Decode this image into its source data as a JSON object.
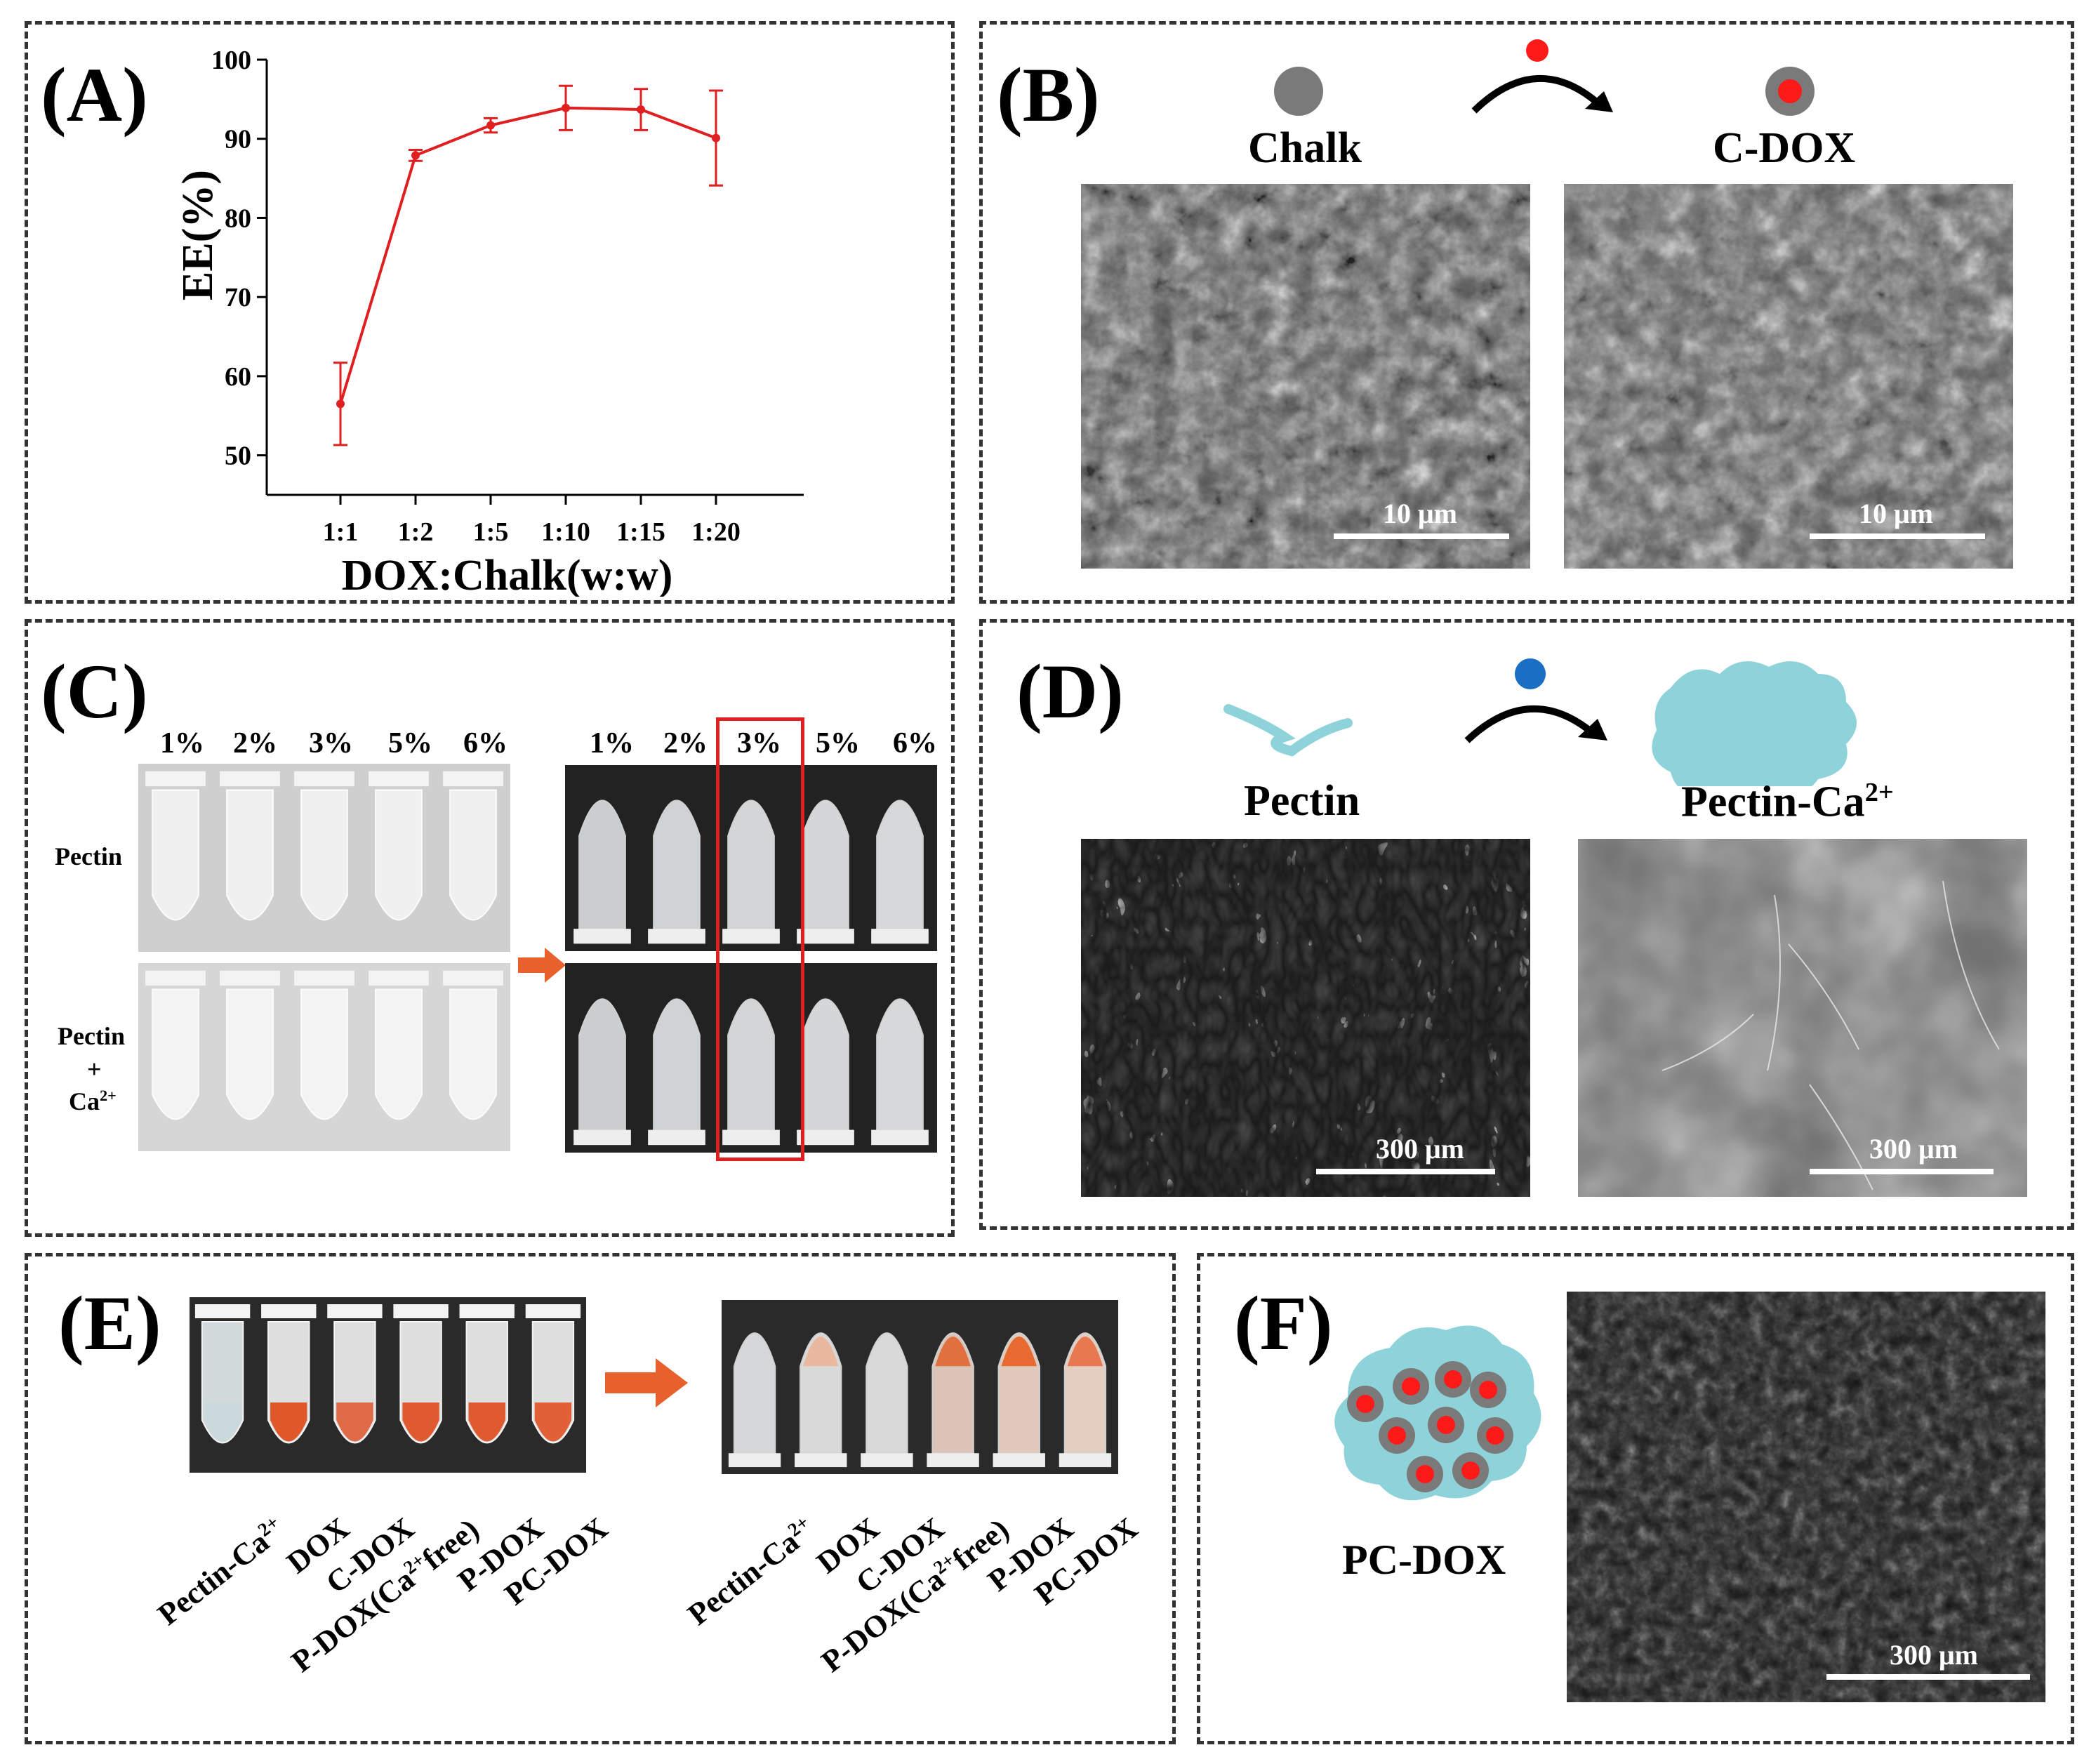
{
  "panels": {
    "A": {
      "label": "(A)",
      "chart_data": {
        "type": "line",
        "categories": [
          "1:1",
          "1:2",
          "1:5",
          "1:10",
          "1:15",
          "1:20"
        ],
        "series": [
          {
            "values": [
              56.5,
              87.9,
              91.7,
              93.9,
              93.7,
              90.1
            ],
            "errors": [
              5.2,
              0.7,
              0.9,
              2.8,
              2.6,
              6.0
            ],
            "color": "#e02020"
          }
        ],
        "xlabel": "DOX:Chalk(w:w)",
        "ylabel": "EE(%)",
        "yticks": [
          50,
          60,
          70,
          80,
          90,
          100
        ],
        "ylim": [
          45,
          100
        ]
      }
    },
    "B": {
      "label": "(B)",
      "left_title": "Chalk",
      "right_title": "C-DOX",
      "scale_left": "10 μm",
      "scale_right": "10 μm"
    },
    "C": {
      "label": "(C)",
      "conc_left": [
        "1%",
        "2%",
        "3%",
        "5%",
        "6%"
      ],
      "conc_right": [
        "1%",
        "2%",
        "3%",
        "5%",
        "6%"
      ],
      "row1": "Pectin",
      "row2_a": "Pectin",
      "row2_b": "+",
      "row2_c": "Ca",
      "row2_sup": "2+"
    },
    "D": {
      "label": "(D)",
      "left_title": "Pectin",
      "right_title": "Pectin-Ca",
      "right_sup": "2+",
      "scale_left": "300 μm",
      "scale_right": "300 μm"
    },
    "E": {
      "label": "(E)",
      "samples": [
        "Pectin-Ca",
        "DOX",
        "C-DOX",
        "P-DOX(Ca",
        "P-DOX",
        "PC-DOX"
      ],
      "sample_sups": [
        "2+",
        "",
        "",
        "2+",
        "",
        ""
      ],
      "sample_suffix": [
        "",
        "",
        "",
        "free)",
        "",
        ""
      ]
    },
    "F": {
      "label": "(F)",
      "title": "PC-DOX",
      "scale": "300 μm"
    }
  },
  "colors": {
    "line": "#e02020",
    "arrow": "#e8602c",
    "dox_red": "#ff1a1a",
    "chalk_grey": "#7a7a7a",
    "ca_blue": "#1a6fc4",
    "gel": "#8fd3da",
    "highlight": "#e02020"
  }
}
